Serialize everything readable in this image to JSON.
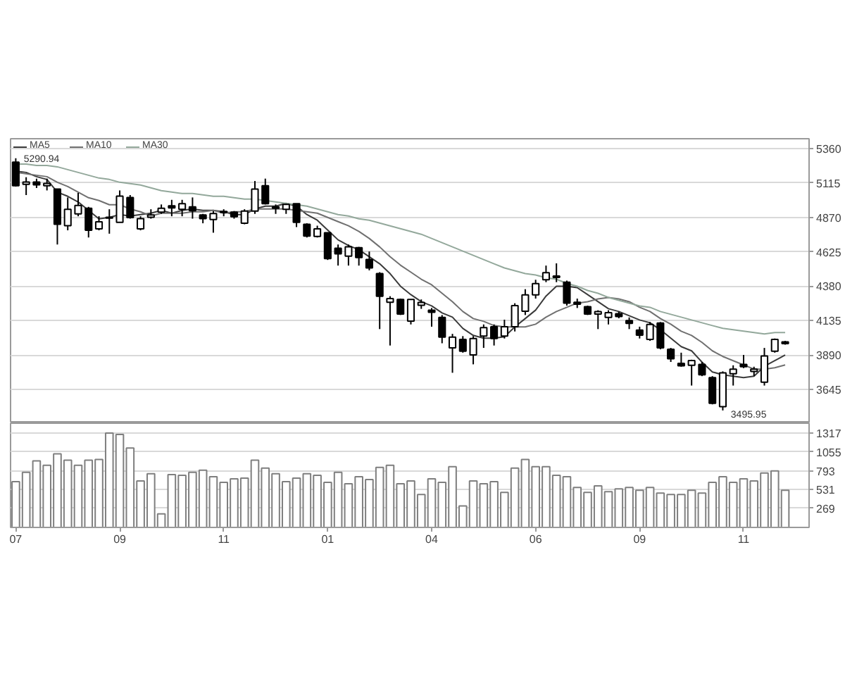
{
  "chart_data": [
    {
      "type": "candlestick",
      "categories": [
        "07",
        null,
        null,
        null,
        null,
        null,
        null,
        null,
        null,
        null,
        "09",
        null,
        null,
        null,
        null,
        null,
        null,
        null,
        null,
        null,
        "11",
        null,
        null,
        null,
        null,
        null,
        null,
        null,
        null,
        null,
        "01",
        null,
        null,
        null,
        null,
        null,
        null,
        null,
        null,
        null,
        "04",
        null,
        null,
        null,
        null,
        null,
        null,
        null,
        null,
        null,
        "06",
        null,
        null,
        null,
        null,
        null,
        null,
        null,
        null,
        null,
        "09",
        null,
        null,
        null,
        null,
        null,
        null,
        null,
        null,
        null,
        "11",
        null,
        null,
        null,
        null
      ],
      "ohlc": [
        [
          5263,
          5290.94,
          5090,
          5096
        ],
        [
          5106,
          5156,
          5029,
          5122
        ],
        [
          5122,
          5146,
          5079,
          5102
        ],
        [
          5096,
          5146,
          5062,
          5112
        ],
        [
          5072,
          5072,
          4677,
          4821
        ],
        [
          4811,
          5012,
          4778,
          4928
        ],
        [
          4895,
          5045,
          4878,
          4955
        ],
        [
          4935,
          4945,
          4727,
          4778
        ],
        [
          4788,
          4878,
          4778,
          4838
        ],
        [
          4865,
          4928,
          4754,
          4871
        ],
        [
          4835,
          5062,
          4835,
          5022
        ],
        [
          5012,
          5029,
          4861,
          4868
        ],
        [
          4788,
          4878,
          4778,
          4861
        ],
        [
          4871,
          4928,
          4861,
          4888
        ],
        [
          4908,
          4962,
          4895,
          4935
        ],
        [
          4952,
          4995,
          4878,
          4938
        ],
        [
          4928,
          4995,
          4878,
          4968
        ],
        [
          4945,
          5012,
          4861,
          4918
        ],
        [
          4888,
          4895,
          4828,
          4861
        ],
        [
          4855,
          4915,
          4761,
          4898
        ],
        [
          4912,
          4928,
          4878,
          4905
        ],
        [
          4908,
          4915,
          4861,
          4875
        ],
        [
          4828,
          4928,
          4821,
          4915
        ],
        [
          4915,
          5129,
          4895,
          5072
        ],
        [
          5096,
          5146,
          4962,
          4968
        ],
        [
          4945,
          4962,
          4895,
          4935
        ],
        [
          4928,
          4968,
          4895,
          4962
        ],
        [
          4968,
          4968,
          4801,
          4835
        ],
        [
          4821,
          4828,
          4727,
          4737
        ],
        [
          4734,
          4811,
          4727,
          4788
        ],
        [
          4761,
          4761,
          4567,
          4577
        ],
        [
          4650,
          4677,
          4527,
          4610
        ],
        [
          4594,
          4677,
          4527,
          4660
        ],
        [
          4654,
          4660,
          4527,
          4584
        ],
        [
          4570,
          4627,
          4493,
          4510
        ],
        [
          4470,
          4480,
          4075,
          4309
        ],
        [
          4266,
          4309,
          3958,
          4292
        ],
        [
          4286,
          4292,
          4175,
          4182
        ],
        [
          4132,
          4286,
          4108,
          4286
        ],
        [
          4245,
          4286,
          4219,
          4265
        ],
        [
          4209,
          4225,
          4092,
          4195
        ],
        [
          4158,
          4175,
          3974,
          4018
        ],
        [
          3941,
          4041,
          3764,
          4018
        ],
        [
          4001,
          4025,
          3907,
          3917
        ],
        [
          3891,
          4025,
          3824,
          4008
        ],
        [
          4025,
          4108,
          3941,
          4085
        ],
        [
          4092,
          4108,
          3958,
          4008
        ],
        [
          4025,
          4142,
          4008,
          4092
        ],
        [
          4092,
          4259,
          4058,
          4242
        ],
        [
          4202,
          4359,
          4175,
          4319
        ],
        [
          4319,
          4426,
          4292,
          4399
        ],
        [
          4426,
          4527,
          4409,
          4476
        ],
        [
          4453,
          4543,
          4409,
          4443
        ],
        [
          4409,
          4420,
          4242,
          4259
        ],
        [
          4266,
          4292,
          4225,
          4252
        ],
        [
          4235,
          4242,
          4175,
          4182
        ],
        [
          4182,
          4209,
          4075,
          4199
        ],
        [
          4158,
          4209,
          4108,
          4192
        ],
        [
          4185,
          4199,
          4152,
          4165
        ],
        [
          4135,
          4158,
          4075,
          4115
        ],
        [
          4068,
          4092,
          4008,
          4031
        ],
        [
          4001,
          4125,
          3991,
          4108
        ],
        [
          4118,
          4125,
          3931,
          3941
        ],
        [
          3931,
          3941,
          3841,
          3864
        ],
        [
          3831,
          3907,
          3807,
          3814
        ],
        [
          3817,
          3857,
          3673,
          3851
        ],
        [
          3824,
          3841,
          3740,
          3750
        ],
        [
          3730,
          3740,
          3539,
          3546
        ],
        [
          3523,
          3774,
          3495.95,
          3764
        ],
        [
          3757,
          3817,
          3673,
          3790
        ],
        [
          3824,
          3891,
          3797,
          3807
        ],
        [
          3774,
          3807,
          3740,
          3790
        ],
        [
          3697,
          3941,
          3673,
          3884
        ],
        [
          3917,
          4008,
          3907,
          4001
        ],
        [
          3984,
          3991,
          3964,
          3971
        ]
      ],
      "color": "#000000",
      "series": [
        {
          "name": "MA5",
          "type": "line",
          "color": "#3a3a3a",
          "values": [
            5200,
            5190,
            5160,
            5140,
            5050,
            5020,
            4980,
            4920,
            4860,
            4870,
            4890,
            4880,
            4890,
            4900,
            4920,
            4900,
            4920,
            4930,
            4920,
            4920,
            4910,
            4890,
            4890,
            4930,
            4950,
            4950,
            4970,
            4950,
            4890,
            4850,
            4780,
            4710,
            4670,
            4640,
            4590,
            4540,
            4470,
            4380,
            4320,
            4270,
            4240,
            4190,
            4160,
            4080,
            4030,
            4010,
            4010,
            4020,
            4090,
            4150,
            4210,
            4310,
            4380,
            4380,
            4370,
            4320,
            4270,
            4220,
            4200,
            4170,
            4140,
            4120,
            4070,
            4010,
            3950,
            3920,
            3840,
            3770,
            3750,
            3740,
            3730,
            3740,
            3810,
            3850,
            3890
          ]
        },
        {
          "name": "MA10",
          "type": "line",
          "color": "#707070",
          "values": [
            5190,
            5180,
            5170,
            5160,
            5120,
            5090,
            5050,
            5010,
            4990,
            4960,
            4960,
            4930,
            4910,
            4880,
            4900,
            4900,
            4900,
            4910,
            4910,
            4920,
            4900,
            4910,
            4910,
            4930,
            4930,
            4930,
            4930,
            4920,
            4910,
            4900,
            4870,
            4840,
            4810,
            4770,
            4720,
            4660,
            4590,
            4530,
            4480,
            4430,
            4390,
            4330,
            4270,
            4200,
            4150,
            4130,
            4100,
            4090,
            4090,
            4090,
            4110,
            4160,
            4200,
            4230,
            4260,
            4270,
            4290,
            4300,
            4290,
            4270,
            4230,
            4200,
            4150,
            4110,
            4060,
            4030,
            3980,
            3920,
            3880,
            3850,
            3820,
            3790,
            3790,
            3800,
            3820
          ]
        },
        {
          "name": "MA30",
          "type": "line",
          "color": "#93a89b",
          "values": [
            5250,
            5250,
            5240,
            5240,
            5230,
            5210,
            5190,
            5170,
            5150,
            5140,
            5120,
            5110,
            5100,
            5080,
            5060,
            5050,
            5040,
            5040,
            5030,
            5020,
            5020,
            5010,
            5000,
            5000,
            4990,
            4980,
            4970,
            4960,
            4950,
            4930,
            4910,
            4890,
            4880,
            4860,
            4850,
            4830,
            4810,
            4790,
            4770,
            4750,
            4720,
            4690,
            4660,
            4630,
            4600,
            4570,
            4540,
            4510,
            4490,
            4470,
            4460,
            4440,
            4430,
            4400,
            4380,
            4350,
            4330,
            4300,
            4280,
            4260,
            4240,
            4230,
            4200,
            4180,
            4160,
            4140,
            4120,
            4100,
            4080,
            4070,
            4060,
            4050,
            4040,
            4050,
            4050
          ]
        }
      ],
      "ylim": [
        3405,
        5430
      ],
      "yticks": [
        3645,
        3890,
        4135,
        4380,
        4625,
        4870,
        5115,
        5360
      ],
      "grid": "y",
      "legend": "top left",
      "tick_labels": "y",
      "annotations": [
        {
          "text": "5290.94",
          "x": "07",
          "y": 5290.94
        },
        "3495.95"
      ]
    },
    {
      "type": "bar",
      "categories": [
        "07",
        null,
        null,
        null,
        null,
        null,
        null,
        null,
        null,
        null,
        "09",
        null,
        null,
        null,
        null,
        null,
        null,
        null,
        null,
        null,
        "11",
        null,
        null,
        null,
        null,
        null,
        null,
        null,
        null,
        null,
        "01",
        null,
        null,
        null,
        null,
        null,
        null,
        null,
        null,
        null,
        "04",
        null,
        null,
        null,
        null,
        null,
        null,
        null,
        null,
        null,
        "06",
        null,
        null,
        null,
        null,
        null,
        null,
        null,
        null,
        null,
        "09",
        null,
        null,
        null,
        null,
        null,
        null,
        null,
        null,
        null,
        "11",
        null,
        null,
        null,
        null
      ],
      "values": [
        640,
        770,
        930,
        870,
        1030,
        940,
        870,
        940,
        950,
        1320,
        1300,
        1110,
        650,
        750,
        190,
        740,
        730,
        770,
        800,
        710,
        630,
        680,
        690,
        940,
        830,
        750,
        640,
        690,
        750,
        730,
        630,
        770,
        610,
        710,
        670,
        840,
        870,
        610,
        650,
        460,
        680,
        630,
        850,
        300,
        650,
        610,
        640,
        490,
        830,
        950,
        850,
        850,
        730,
        710,
        560,
        490,
        580,
        500,
        540,
        560,
        520,
        560,
        480,
        460,
        460,
        520,
        480,
        630,
        710,
        630,
        680,
        650,
        760,
        790,
        520
      ],
      "color": "#7f7f7f",
      "ylim": [
        0,
        1458
      ],
      "yticks": [
        269,
        531,
        793,
        1055,
        1317
      ],
      "grid": "y"
    }
  ]
}
